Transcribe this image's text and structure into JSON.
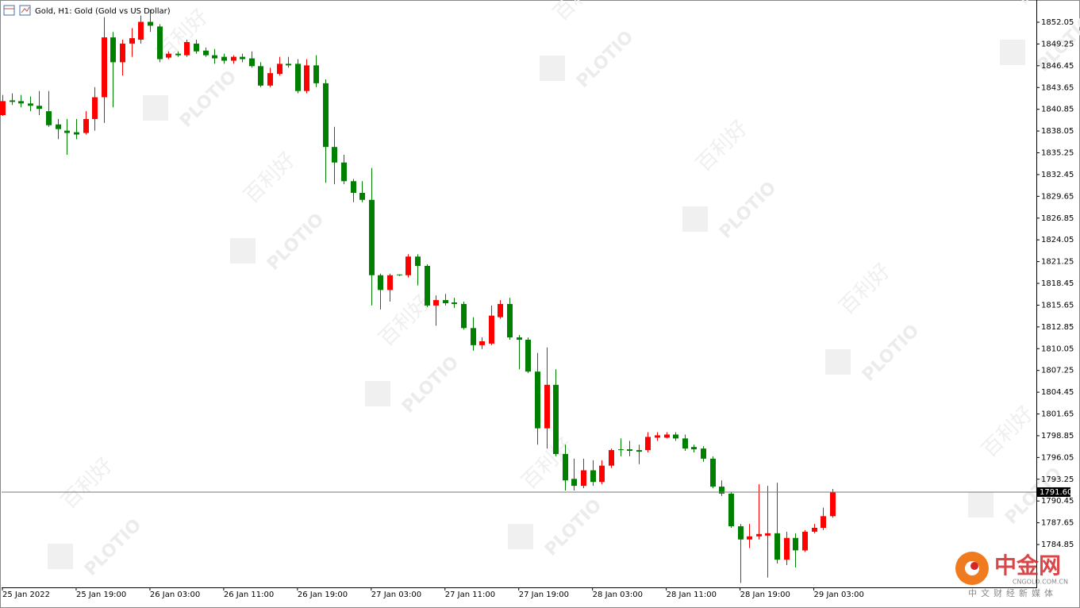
{
  "chart_data": {
    "type": "candlestick",
    "title": "Gold, H1:  Gold (Gold vs US Dollar)",
    "categories": [
      "25 Jan 2022",
      null,
      null,
      null,
      null,
      null,
      null,
      null,
      "25 Jan 19:00",
      null,
      null,
      null,
      null,
      null,
      null,
      null,
      "26 Jan 03:00",
      null,
      null,
      null,
      null,
      null,
      null,
      null,
      "26 Jan 11:00",
      null,
      null,
      null,
      null,
      null,
      null,
      null,
      "26 Jan 19:00",
      null,
      null,
      null,
      null,
      null,
      null,
      null,
      "27 Jan 03:00",
      null,
      null,
      null,
      null,
      null,
      null,
      null,
      "27 Jan 11:00",
      null,
      null,
      null,
      null,
      null,
      null,
      null,
      "27 Jan 19:00",
      null,
      null,
      null,
      null,
      null,
      null,
      null,
      "28 Jan 03:00",
      null,
      null,
      null,
      null,
      null,
      null,
      null,
      "28 Jan 11:00",
      null,
      null,
      null,
      null,
      null,
      null,
      null,
      "28 Jan 19:00",
      null,
      null,
      null,
      null,
      null,
      null,
      null,
      "29 Jan 03:00",
      null,
      null
    ],
    "open": [
      1840.1,
      1842.0,
      1841.9,
      1841.6,
      1841.3,
      1840.6,
      1838.9,
      1838.1,
      1837.9,
      1837.8,
      1839.6,
      1842.4,
      1850.1,
      1846.9,
      1849.3,
      1849.8,
      1852.1,
      1851.5,
      1847.5,
      1848.0,
      1847.8,
      1849.3,
      1848.4,
      1847.8,
      1847.6,
      1847.1,
      1847.6,
      1847.4,
      1846.4,
      1843.9,
      1845.4,
      1846.7,
      1846.7,
      1843.2,
      1846.5,
      1844.2,
      1836.0,
      1834.0,
      1831.6,
      1830.1,
      1829.2,
      1819.5,
      1817.6,
      1819.6,
      1819.5,
      1821.9,
      1820.7,
      1815.6,
      1816.3,
      1816.0,
      1815.8,
      1812.7,
      1810.5,
      1810.7,
      1814.1,
      1815.8,
      1811.5,
      1811.2,
      1807.1,
      1799.8,
      1805.4,
      1796.5,
      1793.3,
      1792.4,
      1794.4,
      1792.9,
      1795.0,
      1797.1,
      1797.1,
      1797.0,
      1797.0,
      1798.6,
      1798.6,
      1799.0,
      1798.5,
      1797.4,
      1797.2,
      1795.9,
      1792.3,
      1791.4,
      1787.2,
      1785.5,
      1785.9,
      1786.0,
      1786.3,
      1782.9,
      1785.7,
      1784.1,
      1786.5,
      1787.0,
      1788.5
    ],
    "high": [
      1842.7,
      1842.9,
      1842.7,
      1842.5,
      1843.2,
      1843.2,
      1839.6,
      1839.6,
      1839.6,
      1840.6,
      1843.7,
      1852.7,
      1850.8,
      1849.8,
      1851.3,
      1852.9,
      1853.7,
      1851.8,
      1848.3,
      1848.3,
      1849.8,
      1849.8,
      1848.8,
      1848.6,
      1848.0,
      1847.8,
      1848.0,
      1848.3,
      1846.9,
      1846.2,
      1847.6,
      1847.6,
      1847.3,
      1847.3,
      1847.8,
      1844.7,
      1838.6,
      1835.0,
      1831.9,
      1831.6,
      1833.3,
      1819.7,
      1819.7,
      1819.6,
      1822.2,
      1822.2,
      1820.9,
      1816.9,
      1817.1,
      1816.6,
      1816.1,
      1814.1,
      1811.5,
      1815.6,
      1816.3,
      1816.6,
      1811.8,
      1811.5,
      1809.5,
      1810.2,
      1807.4,
      1797.7,
      1795.9,
      1795.9,
      1795.7,
      1795.7,
      1797.2,
      1798.5,
      1798.2,
      1797.7,
      1799.3,
      1799.3,
      1799.3,
      1799.3,
      1799.0,
      1797.7,
      1797.5,
      1796.2,
      1793.1,
      1791.6,
      1787.5,
      1787.5,
      1792.6,
      1792.4,
      1792.8,
      1786.5,
      1786.3,
      1786.7,
      1787.5,
      1789.6,
      1792.0
    ],
    "low": [
      1840.0,
      1841.4,
      1841.1,
      1840.6,
      1840.1,
      1838.6,
      1837.0,
      1835.0,
      1837.0,
      1837.6,
      1838.1,
      1839.1,
      1841.1,
      1845.2,
      1847.6,
      1849.3,
      1850.8,
      1846.9,
      1847.3,
      1847.6,
      1847.6,
      1848.0,
      1847.6,
      1846.7,
      1846.7,
      1846.7,
      1846.9,
      1846.2,
      1843.7,
      1843.7,
      1845.2,
      1846.2,
      1842.9,
      1842.9,
      1843.7,
      1831.4,
      1831.2,
      1831.2,
      1828.9,
      1828.9,
      1815.6,
      1815.1,
      1816.1,
      1819.4,
      1819.2,
      1818.2,
      1815.4,
      1813.0,
      1815.6,
      1815.3,
      1812.5,
      1809.8,
      1810.0,
      1810.5,
      1813.9,
      1811.2,
      1807.4,
      1806.9,
      1797.7,
      1797.2,
      1796.2,
      1791.8,
      1791.8,
      1792.1,
      1792.4,
      1792.6,
      1794.7,
      1796.2,
      1796.2,
      1795.2,
      1796.7,
      1798.2,
      1798.5,
      1798.2,
      1796.9,
      1796.7,
      1795.5,
      1792.1,
      1791.1,
      1787.0,
      1779.9,
      1784.4,
      1785.5,
      1780.6,
      1782.4,
      1782.2,
      1781.9,
      1783.9,
      1786.3,
      1786.7,
      1788.3
    ],
    "close": [
      1841.9,
      1841.8,
      1841.6,
      1841.3,
      1840.9,
      1838.8,
      1838.3,
      1837.8,
      1837.6,
      1839.6,
      1842.4,
      1850.1,
      1846.9,
      1849.3,
      1850.0,
      1852.1,
      1851.6,
      1847.3,
      1848.0,
      1847.8,
      1849.5,
      1848.3,
      1847.8,
      1847.4,
      1847.1,
      1847.6,
      1847.3,
      1846.4,
      1843.9,
      1845.5,
      1846.7,
      1846.5,
      1843.2,
      1846.5,
      1844.2,
      1836.0,
      1834.0,
      1831.6,
      1830.1,
      1829.2,
      1819.5,
      1817.6,
      1819.5,
      1819.5,
      1821.9,
      1820.7,
      1815.6,
      1816.3,
      1815.9,
      1815.8,
      1812.7,
      1810.5,
      1811.0,
      1814.3,
      1815.8,
      1811.5,
      1811.2,
      1807.1,
      1799.8,
      1805.4,
      1796.5,
      1793.1,
      1792.4,
      1794.4,
      1792.9,
      1795.0,
      1797.0,
      1797.0,
      1796.9,
      1796.8,
      1798.7,
      1798.9,
      1799.0,
      1798.5,
      1797.2,
      1797.1,
      1795.9,
      1792.3,
      1791.4,
      1787.2,
      1785.5,
      1785.9,
      1786.2,
      1786.3,
      1782.9,
      1785.7,
      1784.1,
      1786.5,
      1787.0,
      1788.5,
      1791.6
    ],
    "up_color": "#ff0000",
    "down_color": "#008000",
    "ylim": [
      1779.34,
      1854.91
    ],
    "yticks": [
      1852.05,
      1849.25,
      1846.45,
      1843.65,
      1840.85,
      1838.05,
      1835.25,
      1832.45,
      1829.65,
      1826.85,
      1824.05,
      1821.25,
      1818.45,
      1815.65,
      1812.85,
      1810.05,
      1807.25,
      1804.45,
      1801.65,
      1798.85,
      1796.05,
      1793.25,
      1790.45,
      1787.65,
      1784.85
    ],
    "price_line": {
      "value": 1791.6,
      "label": "1791.60"
    },
    "grid": false
  },
  "watermark": {
    "brand": "PLOTIO",
    "brand_cn": "百利好"
  },
  "logo": {
    "name": "中金网",
    "site": "CNGOLD.COM.CN",
    "tagline": "中文财经新媒体"
  }
}
